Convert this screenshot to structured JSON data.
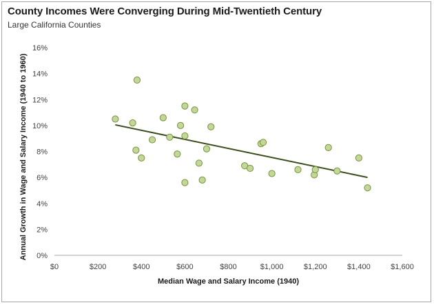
{
  "chart_data": {
    "type": "scatter",
    "title": "County Incomes Were Converging During Mid-Twentieth Century",
    "subtitle": "Large California Counties",
    "xlabel": "Median Wage and Salary Income (1940)",
    "ylabel": "Annual Growth in Wage and Salary Income (1940 to 1960)",
    "xlim": [
      0,
      1600
    ],
    "ylim": [
      0,
      0.16
    ],
    "x_ticks": [
      0,
      200,
      400,
      600,
      800,
      1000,
      1200,
      1400,
      1600
    ],
    "x_tick_labels": [
      "$0",
      "$200",
      "$400",
      "$600",
      "$800",
      "$1,000",
      "$1,200",
      "$1,400",
      "$1,600"
    ],
    "y_ticks": [
      0,
      0.02,
      0.04,
      0.06,
      0.08,
      0.1,
      0.12,
      0.14,
      0.16
    ],
    "y_tick_labels": [
      "0%",
      "2%",
      "4%",
      "6%",
      "8%",
      "10%",
      "12%",
      "14%",
      "16%"
    ],
    "grid": false,
    "legend": "none",
    "marker_color": "#c4d79b",
    "marker_edge": "#76923c",
    "trendline_color": "#3a4b1c",
    "trendline": {
      "x": [
        280,
        1440
      ],
      "y": [
        0.1005,
        0.06
      ]
    },
    "points": [
      {
        "x": 280,
        "y": 0.105
      },
      {
        "x": 360,
        "y": 0.102
      },
      {
        "x": 375,
        "y": 0.081
      },
      {
        "x": 380,
        "y": 0.135
      },
      {
        "x": 400,
        "y": 0.075
      },
      {
        "x": 450,
        "y": 0.089
      },
      {
        "x": 500,
        "y": 0.106
      },
      {
        "x": 530,
        "y": 0.091
      },
      {
        "x": 565,
        "y": 0.078
      },
      {
        "x": 580,
        "y": 0.1
      },
      {
        "x": 600,
        "y": 0.092
      },
      {
        "x": 600,
        "y": 0.115
      },
      {
        "x": 600,
        "y": 0.056
      },
      {
        "x": 645,
        "y": 0.112
      },
      {
        "x": 665,
        "y": 0.071
      },
      {
        "x": 680,
        "y": 0.058
      },
      {
        "x": 700,
        "y": 0.082
      },
      {
        "x": 720,
        "y": 0.099
      },
      {
        "x": 875,
        "y": 0.069
      },
      {
        "x": 900,
        "y": 0.067
      },
      {
        "x": 950,
        "y": 0.086
      },
      {
        "x": 960,
        "y": 0.087
      },
      {
        "x": 1000,
        "y": 0.063
      },
      {
        "x": 1120,
        "y": 0.066
      },
      {
        "x": 1195,
        "y": 0.062
      },
      {
        "x": 1200,
        "y": 0.066
      },
      {
        "x": 1260,
        "y": 0.083
      },
      {
        "x": 1300,
        "y": 0.065
      },
      {
        "x": 1400,
        "y": 0.075
      },
      {
        "x": 1440,
        "y": 0.052
      }
    ]
  }
}
